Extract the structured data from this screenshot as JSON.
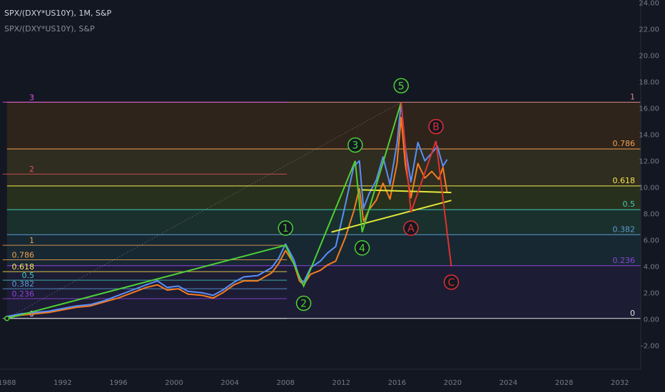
{
  "header": {
    "symbol_line": "SPX/(DXY*US10Y), 1M, S&P",
    "indicator_line": "SPX/(DXY*US10Y), S&P"
  },
  "colors": {
    "background": "#131722",
    "price_orange": "#f57c1f",
    "price_blue": "#5b8ff9",
    "impulse_green": "#4cd137",
    "correction_red": "#e03131",
    "trendline_yellow": "#e6e83a",
    "axis_text": "#787b86"
  },
  "chart_data": {
    "type": "line",
    "x_ticks": [
      "1988",
      "1992",
      "1996",
      "2000",
      "2004",
      "2008",
      "2012",
      "2016",
      "2020",
      "2024",
      "2028",
      "2032"
    ],
    "y_ticks": [
      "-2.00",
      "0.00",
      "2.00",
      "4.00",
      "6.00",
      "8.00",
      "10.00",
      "12.00",
      "14.00",
      "16.00",
      "18.00",
      "20.00",
      "22.00",
      "24.00"
    ],
    "xlim": [
      1987.5,
      2033.5
    ],
    "ylim": [
      -3.8,
      24.2
    ],
    "series": [
      {
        "color": "#f57c1f",
        "points": [
          [
            1988.0,
            0.1
          ],
          [
            1989.0,
            0.3
          ],
          [
            1990.0,
            0.4
          ],
          [
            1991.0,
            0.5
          ],
          [
            1992.0,
            0.7
          ],
          [
            1993.0,
            0.9
          ],
          [
            1994.0,
            1.0
          ],
          [
            1995.0,
            1.3
          ],
          [
            1996.0,
            1.6
          ],
          [
            1997.0,
            2.0
          ],
          [
            1998.0,
            2.4
          ],
          [
            1998.8,
            2.6
          ],
          [
            1999.5,
            2.2
          ],
          [
            2000.3,
            2.3
          ],
          [
            2001.0,
            1.9
          ],
          [
            2002.0,
            1.8
          ],
          [
            2002.8,
            1.6
          ],
          [
            2003.5,
            2.0
          ],
          [
            2004.3,
            2.6
          ],
          [
            2005.0,
            2.9
          ],
          [
            2006.0,
            2.9
          ],
          [
            2007.0,
            3.5
          ],
          [
            2007.5,
            4.2
          ],
          [
            2008.0,
            5.2
          ],
          [
            2008.6,
            4.2
          ],
          [
            2009.0,
            2.9
          ],
          [
            2009.3,
            2.6
          ],
          [
            2009.8,
            3.4
          ],
          [
            2010.5,
            3.7
          ],
          [
            2011.0,
            4.1
          ],
          [
            2011.6,
            4.4
          ],
          [
            2012.3,
            6.2
          ],
          [
            2012.9,
            8.2
          ],
          [
            2013.3,
            9.9
          ],
          [
            2013.6,
            7.4
          ],
          [
            2014.0,
            8.3
          ],
          [
            2014.5,
            9.0
          ],
          [
            2015.0,
            10.3
          ],
          [
            2015.5,
            9.1
          ],
          [
            2016.0,
            11.8
          ],
          [
            2016.3,
            15.3
          ],
          [
            2016.6,
            11.7
          ],
          [
            2017.0,
            9.2
          ],
          [
            2017.5,
            11.8
          ],
          [
            2018.0,
            10.7
          ],
          [
            2018.5,
            11.2
          ],
          [
            2019.0,
            10.6
          ],
          [
            2019.3,
            11.5
          ],
          [
            2019.6,
            9.6
          ]
        ]
      },
      {
        "color": "#5b8ff9",
        "points": [
          [
            1988.0,
            0.2
          ],
          [
            1989.0,
            0.4
          ],
          [
            1990.0,
            0.5
          ],
          [
            1991.0,
            0.6
          ],
          [
            1992.0,
            0.8
          ],
          [
            1993.0,
            1.0
          ],
          [
            1994.0,
            1.1
          ],
          [
            1995.0,
            1.4
          ],
          [
            1996.0,
            1.8
          ],
          [
            1997.0,
            2.2
          ],
          [
            1998.0,
            2.6
          ],
          [
            1998.8,
            2.9
          ],
          [
            1999.5,
            2.4
          ],
          [
            2000.3,
            2.5
          ],
          [
            2001.0,
            2.1
          ],
          [
            2002.0,
            2.0
          ],
          [
            2002.8,
            1.8
          ],
          [
            2003.5,
            2.2
          ],
          [
            2004.3,
            2.8
          ],
          [
            2005.0,
            3.2
          ],
          [
            2006.0,
            3.3
          ],
          [
            2007.0,
            3.9
          ],
          [
            2007.5,
            4.6
          ],
          [
            2008.0,
            5.7
          ],
          [
            2008.6,
            4.5
          ],
          [
            2009.0,
            3.1
          ],
          [
            2009.3,
            2.8
          ],
          [
            2009.8,
            3.9
          ],
          [
            2010.5,
            4.4
          ],
          [
            2011.0,
            5.0
          ],
          [
            2011.6,
            5.5
          ],
          [
            2012.3,
            8.7
          ],
          [
            2012.9,
            11.6
          ],
          [
            2013.3,
            12.0
          ],
          [
            2013.6,
            8.4
          ],
          [
            2014.0,
            9.5
          ],
          [
            2014.5,
            10.5
          ],
          [
            2015.0,
            12.3
          ],
          [
            2015.5,
            10.2
          ],
          [
            2016.0,
            13.3
          ],
          [
            2016.3,
            16.4
          ],
          [
            2016.6,
            13.0
          ],
          [
            2017.0,
            10.4
          ],
          [
            2017.5,
            13.4
          ],
          [
            2018.0,
            12.0
          ],
          [
            2018.5,
            12.6
          ],
          [
            2018.9,
            13.1
          ],
          [
            2019.3,
            11.6
          ],
          [
            2019.6,
            12.1
          ]
        ]
      }
    ],
    "fib_retracement": {
      "levels": [
        {
          "label": "1",
          "value": 16.45,
          "color": "#d98c8c"
        },
        {
          "label": "0.786",
          "value": 12.9,
          "color": "#f0a050"
        },
        {
          "label": "0.618",
          "value": 10.1,
          "color": "#f5e84a"
        },
        {
          "label": "0.5",
          "value": 8.3,
          "color": "#40c9b8"
        },
        {
          "label": "0.382",
          "value": 6.4,
          "color": "#5b9bd5"
        },
        {
          "label": "0.236",
          "value": 4.05,
          "color": "#8e44d8"
        },
        {
          "label": "0",
          "value": 0.05,
          "color": "#e0e0e0"
        }
      ]
    },
    "fib_extension": {
      "levels": [
        {
          "label": "3",
          "value": 16.45,
          "color": "#e055e0"
        },
        {
          "label": "2",
          "value": 11.0,
          "color": "#e05555"
        },
        {
          "label": "1",
          "value": 5.6,
          "color": "#f0a050"
        },
        {
          "label": "0.786",
          "value": 4.5,
          "color": "#f0a050"
        },
        {
          "label": "0.618",
          "value": 3.6,
          "color": "#f5e84a"
        },
        {
          "label": "0.5",
          "value": 2.95,
          "color": "#40c9b8"
        },
        {
          "label": "0.382",
          "value": 2.3,
          "color": "#5b9bd5"
        },
        {
          "label": "0.236",
          "value": 1.55,
          "color": "#8e44d8"
        },
        {
          "label": "0",
          "value": 0.05,
          "color": "#e0e0e0"
        }
      ]
    },
    "waves": [
      {
        "label": "1",
        "x": 2008.0,
        "y": 5.6,
        "label_y": 6.9
      },
      {
        "label": "2",
        "x": 2009.3,
        "y": 2.5,
        "label_y": 1.2
      },
      {
        "label": "3",
        "x": 2013.0,
        "y": 12.0,
        "label_y": 13.2
      },
      {
        "label": "4",
        "x": 2013.5,
        "y": 6.6,
        "label_y": 5.4
      },
      {
        "label": "5",
        "x": 2016.3,
        "y": 16.45,
        "label_y": 17.7
      },
      {
        "label": "A",
        "x": 2017.0,
        "y": 8.1,
        "label_y": 6.9
      },
      {
        "label": "B",
        "x": 2018.8,
        "y": 13.5,
        "label_y": 14.6
      },
      {
        "label": "C",
        "x": 2019.9,
        "y": 4.0,
        "label_y": 2.8
      }
    ],
    "trendlines": [
      {
        "from": [
          2011.3,
          6.6
        ],
        "to": [
          2019.9,
          9.0
        ]
      },
      {
        "from": [
          2013.5,
          9.8
        ],
        "to": [
          2019.9,
          9.6
        ]
      }
    ],
    "diagonal": {
      "from": [
        1988.0,
        0.05
      ],
      "to": [
        2016.3,
        16.45
      ]
    }
  }
}
